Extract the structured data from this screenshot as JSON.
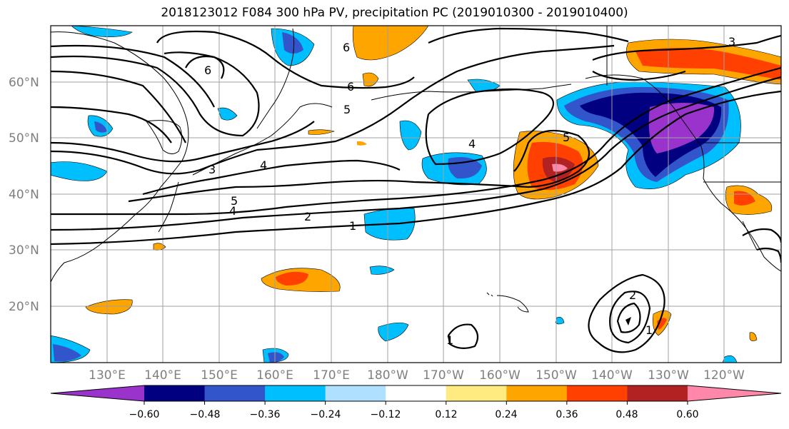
{
  "title": "2018123012 F084 300 hPa PV, precipitation PC (2019010300 - 2019010400)",
  "lat_labels": [
    "60°N",
    "50°N",
    "40°N",
    "30°N",
    "20°N"
  ],
  "lon_labels": [
    "130°E",
    "140°E",
    "150°E",
    "160°E",
    "170°E",
    "180°W",
    "170°W",
    "160°W",
    "150°W",
    "140°W",
    "130°W",
    "120°W"
  ],
  "pv_contour_labels": [
    "6",
    "6",
    "6",
    "5",
    "5",
    "5",
    "4",
    "4",
    "4",
    "3",
    "3",
    "2",
    "2",
    "1",
    "1",
    "1"
  ],
  "colorbar": {
    "tick_labels": [
      "−0.60",
      "−0.48",
      "−0.36",
      "−0.24",
      "−0.12",
      "0.12",
      "0.24",
      "0.36",
      "0.48",
      "0.60"
    ],
    "colors": [
      "#9933cc",
      "#000080",
      "#3355cc",
      "#00bfff",
      "#b0e0ff",
      "#ffffff",
      "#ffeb80",
      "#ffa500",
      "#ff4000",
      "#b22222",
      "#ff88aa"
    ]
  }
}
